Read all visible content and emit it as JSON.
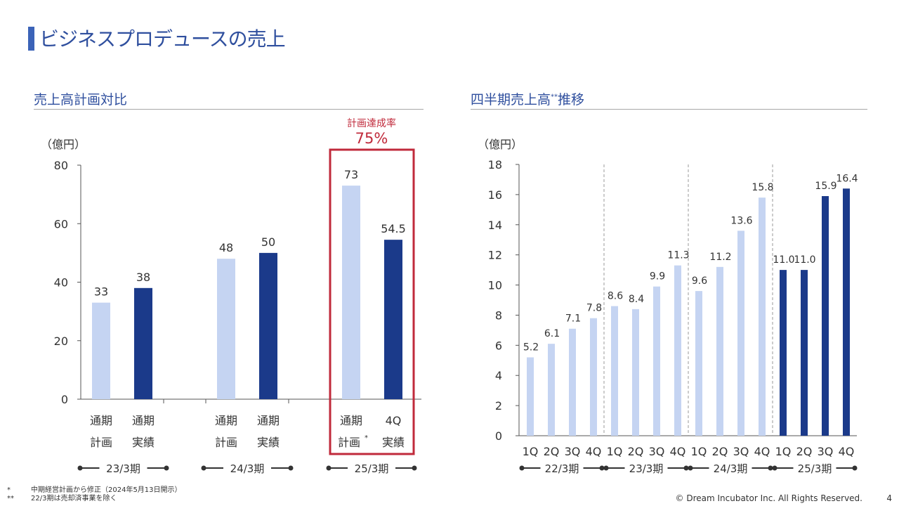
{
  "page_title": "ビジネスプロデュースの売上",
  "left_section_title": "売上高計画対比",
  "right_section_title": "四半期売上高",
  "right_section_title_sup": "**",
  "right_section_title_tail": "推移",
  "colors": {
    "light": "#c5d4f2",
    "dark": "#1b3a8a",
    "highlight": "#c02a3b",
    "title": "#2f4f9e"
  },
  "achievement": {
    "label": "計画達成率",
    "value": "75%"
  },
  "chart_data": [
    {
      "type": "bar",
      "title": "売上高計画対比",
      "unit_label": "（億円）",
      "ylim": [
        0,
        80
      ],
      "yticks": [
        0,
        20,
        40,
        60,
        80
      ],
      "groups": [
        {
          "label": "23/3期",
          "bars": [
            {
              "line1": "通期",
              "line2": "計画",
              "value": 33,
              "display": "33",
              "kind": "plan"
            },
            {
              "line1": "通期",
              "line2": "実績",
              "value": 38,
              "display": "38",
              "kind": "actual"
            }
          ]
        },
        {
          "label": "24/3期",
          "bars": [
            {
              "line1": "通期",
              "line2": "計画",
              "value": 48,
              "display": "48",
              "kind": "plan"
            },
            {
              "line1": "通期",
              "line2": "実績",
              "value": 50,
              "display": "50",
              "kind": "actual"
            }
          ]
        },
        {
          "label": "25/3期",
          "bars": [
            {
              "line1": "通期",
              "line2": "計画",
              "sup": "*",
              "value": 73,
              "display": "73",
              "kind": "plan"
            },
            {
              "line1": "4Q",
              "line2": "実績",
              "value": 54.5,
              "display": "54.5",
              "kind": "actual"
            }
          ]
        }
      ]
    },
    {
      "type": "bar",
      "title": "四半期売上高**推移",
      "unit_label": "（億円）",
      "ylim": [
        0,
        18
      ],
      "yticks": [
        0,
        2,
        4,
        6,
        8,
        10,
        12,
        14,
        16,
        18
      ],
      "groups": [
        {
          "label": "22/3期",
          "bars": [
            {
              "q": "1Q",
              "value": 5.2,
              "display": "5.2",
              "kind": "past"
            },
            {
              "q": "2Q",
              "value": 6.1,
              "display": "6.1",
              "kind": "past"
            },
            {
              "q": "3Q",
              "value": 7.1,
              "display": "7.1",
              "kind": "past"
            },
            {
              "q": "4Q",
              "value": 7.8,
              "display": "7.8",
              "kind": "past"
            }
          ]
        },
        {
          "label": "23/3期",
          "bars": [
            {
              "q": "1Q",
              "value": 8.6,
              "display": "8.6",
              "kind": "past"
            },
            {
              "q": "2Q",
              "value": 8.4,
              "display": "8.4",
              "kind": "past"
            },
            {
              "q": "3Q",
              "value": 9.9,
              "display": "9.9",
              "kind": "past"
            },
            {
              "q": "4Q",
              "value": 11.3,
              "display": "11.3",
              "kind": "past"
            }
          ]
        },
        {
          "label": "24/3期",
          "bars": [
            {
              "q": "1Q",
              "value": 9.6,
              "display": "9.6",
              "kind": "past"
            },
            {
              "q": "2Q",
              "value": 11.2,
              "display": "11.2",
              "kind": "past"
            },
            {
              "q": "3Q",
              "value": 13.6,
              "display": "13.6",
              "kind": "past"
            },
            {
              "q": "4Q",
              "value": 15.8,
              "display": "15.8",
              "kind": "past"
            }
          ]
        },
        {
          "label": "25/3期",
          "bars": [
            {
              "q": "1Q",
              "value": 11.0,
              "display": "11.0",
              "kind": "current"
            },
            {
              "q": "2Q",
              "value": 11.0,
              "display": "11.0",
              "kind": "current"
            },
            {
              "q": "3Q",
              "value": 15.9,
              "display": "15.9",
              "kind": "current"
            },
            {
              "q": "4Q",
              "value": 16.4,
              "display": "16.4",
              "kind": "current"
            }
          ]
        }
      ]
    }
  ],
  "footnotes": [
    {
      "mark": "*",
      "text": "中期経営計画から修正（2024年5月13日開示）"
    },
    {
      "mark": "**",
      "text": "22/3期は売却済事業を除く"
    }
  ],
  "copyright": "© Dream Incubator Inc. All Rights Reserved.",
  "page_number": "4"
}
